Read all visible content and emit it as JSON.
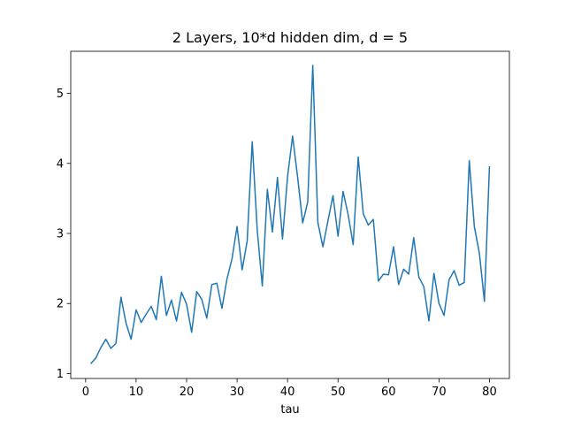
{
  "chart_data": {
    "type": "line",
    "title": "2 Layers, 10*d hidden dim, d = 5",
    "xlabel": "tau",
    "ylabel": "",
    "xlim": [
      -2.95,
      83.95
    ],
    "ylim": [
      0.93,
      5.6
    ],
    "xticks": [
      0,
      10,
      20,
      30,
      40,
      50,
      60,
      70,
      80
    ],
    "yticks": [
      1,
      2,
      3,
      4,
      5
    ],
    "grid": false,
    "legend": "none",
    "series": [
      {
        "color": "#1f77b4",
        "x": [
          1,
          2,
          3,
          4,
          5,
          6,
          7,
          8,
          9,
          10,
          11,
          12,
          13,
          14,
          15,
          16,
          17,
          18,
          19,
          20,
          21,
          22,
          23,
          24,
          25,
          26,
          27,
          28,
          29,
          30,
          31,
          32,
          33,
          34,
          35,
          36,
          37,
          38,
          39,
          40,
          41,
          42,
          43,
          44,
          45,
          46,
          47,
          48,
          49,
          50,
          51,
          52,
          53,
          54,
          55,
          56,
          57,
          58,
          59,
          60,
          61,
          62,
          63,
          64,
          65,
          66,
          67,
          68,
          69,
          70,
          71,
          72,
          73,
          74,
          75,
          76,
          77,
          78,
          79,
          80
        ],
        "y": [
          1.14,
          1.22,
          1.37,
          1.49,
          1.36,
          1.43,
          2.09,
          1.72,
          1.49,
          1.91,
          1.73,
          1.85,
          1.96,
          1.77,
          2.39,
          1.83,
          2.05,
          1.75,
          2.16,
          1.99,
          1.59,
          2.17,
          2.06,
          1.79,
          2.27,
          2.29,
          1.93,
          2.35,
          2.64,
          3.1,
          2.48,
          2.89,
          4.31,
          3.04,
          2.25,
          3.63,
          3.02,
          3.8,
          2.92,
          3.81,
          4.39,
          3.8,
          3.15,
          3.45,
          5.4,
          3.16,
          2.81,
          3.18,
          3.54,
          2.96,
          3.6,
          3.27,
          2.84,
          4.09,
          3.28,
          3.12,
          3.2,
          2.32,
          2.42,
          2.41,
          2.81,
          2.27,
          2.49,
          2.42,
          2.94,
          2.38,
          2.24,
          1.75,
          2.43,
          2.0,
          1.83,
          2.34,
          2.47,
          2.26,
          2.3,
          4.04,
          3.1,
          2.72,
          2.03,
          3.96
        ]
      }
    ]
  }
}
